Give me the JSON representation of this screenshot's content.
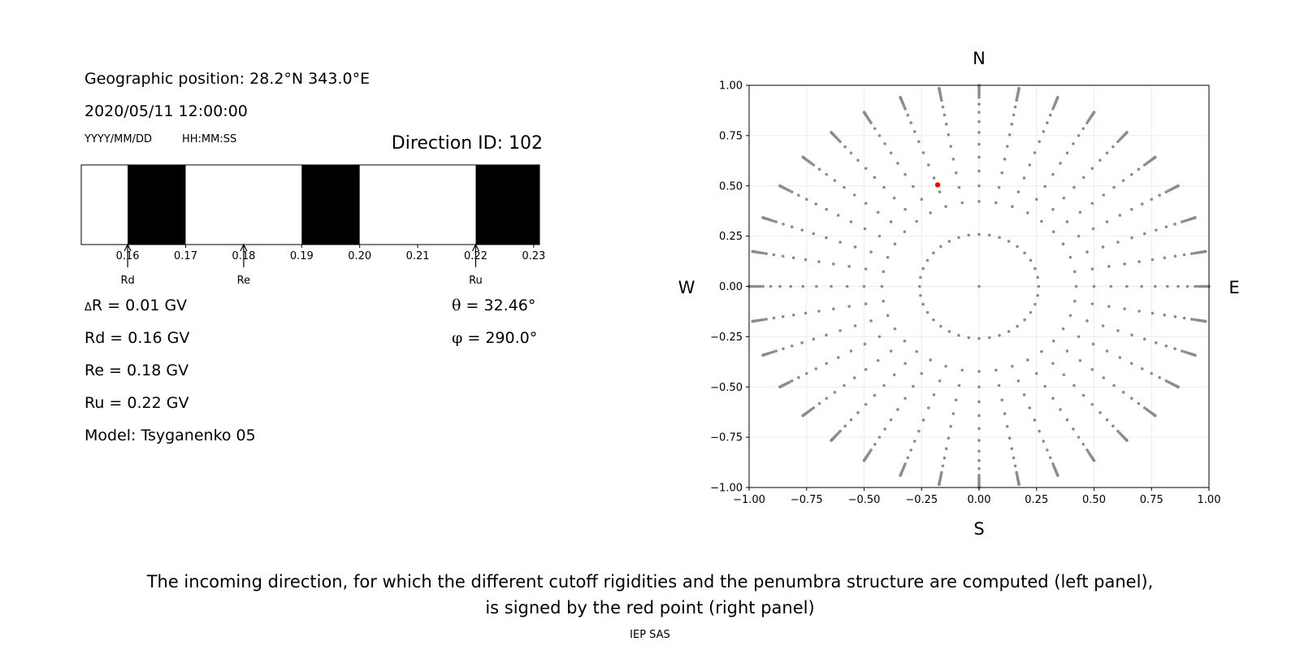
{
  "info": {
    "geo_label": "Geographic position: 28.2°N 343.0°E",
    "datetime": "2020/05/11 12:00:00",
    "date_format": "YYYY/MM/DD",
    "time_format": "HH:MM:SS",
    "direction_label": "Direction ID: 102"
  },
  "values": {
    "delta_r_symbol": "Δ",
    "delta_r": "R = 0.01 GV",
    "rd": "Rd = 0.16 GV",
    "re": "Re = 0.18 GV",
    "ru": "Ru = 0.22 GV",
    "model": "Model: Tsyganenko 05",
    "theta_symbol": "θ",
    "theta": "= 32.46°",
    "phi_symbol": "φ",
    "phi": "= 290.0°"
  },
  "caption": {
    "line1": "The incoming direction, for which the different cutoff rigidities and the penumbra structure are computed (left panel),",
    "line2": "is signed by the red point (right panel)"
  },
  "footer": "IEP SAS",
  "chart_data": [
    {
      "type": "penumbra_bar",
      "xlim": [
        0.152,
        0.231
      ],
      "ticks": [
        0.16,
        0.17,
        0.18,
        0.19,
        0.2,
        0.21,
        0.22,
        0.23
      ],
      "tick_labels": [
        "0.16",
        "0.17",
        "0.18",
        "0.19",
        "0.20",
        "0.21",
        "0.22",
        "0.23"
      ],
      "allowed_color": "#ffffff",
      "forbidden_color": "#000000",
      "forbidden_bands": [
        [
          0.16,
          0.17
        ],
        [
          0.19,
          0.2
        ],
        [
          0.22,
          0.231
        ]
      ],
      "markers": [
        {
          "label": "Rd",
          "value": 0.16
        },
        {
          "label": "Re",
          "value": 0.18
        },
        {
          "label": "Ru",
          "value": 0.22
        }
      ]
    },
    {
      "type": "scatter",
      "xlim": [
        -1.0,
        1.0
      ],
      "ylim": [
        -1.0,
        1.0
      ],
      "ticks": [
        -1.0,
        -0.75,
        -0.5,
        -0.25,
        0.0,
        0.25,
        0.5,
        0.75,
        1.0
      ],
      "tick_labels": [
        "−1.00",
        "−0.75",
        "−0.50",
        "−0.25",
        "0.00",
        "0.25",
        "0.50",
        "0.75",
        "1.00"
      ],
      "grid": true,
      "compass": {
        "north": "N",
        "south": "S",
        "west": "W",
        "east": "E"
      },
      "grid_series": {
        "color": "#8c8c8c",
        "zenith_deg": [
          0,
          15,
          25,
          30,
          35,
          40,
          45,
          50,
          55,
          60,
          65,
          70,
          72,
          74,
          76,
          78,
          80,
          82,
          84,
          86,
          88,
          90
        ],
        "azimuth_step_deg": 10
      },
      "selected_point": {
        "x": -0.18,
        "y": 0.505,
        "color": "#ff0000"
      }
    }
  ]
}
